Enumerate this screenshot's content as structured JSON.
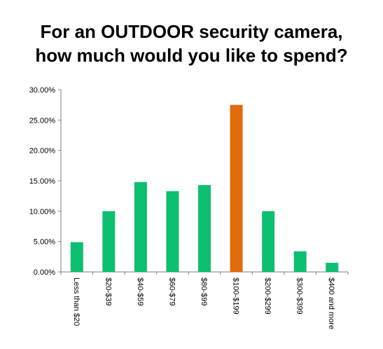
{
  "chart_data": {
    "type": "bar",
    "title_lines": [
      "For an OUTDOOR security camera,",
      "how much would you like to spend?"
    ],
    "categories": [
      "Less than $20",
      "$20-$39",
      "$40-$59",
      "$60-$79",
      "$80-$99",
      "$100-$199",
      "$200-$299",
      "$300-$399",
      "$400 and more"
    ],
    "values": [
      4.9,
      10.0,
      14.8,
      13.3,
      14.3,
      27.5,
      10.0,
      3.4,
      1.5
    ],
    "y_ticks": [
      "0.00%",
      "5.00%",
      "10.00%",
      "15.00%",
      "20.00%",
      "25.00%",
      "30.00%"
    ],
    "ylim": [
      0,
      30
    ],
    "grid": false,
    "colors": {
      "bar": "#0dbf70",
      "highlight": "#e06c0c",
      "axis": "#808080"
    },
    "highlight_index": 5
  }
}
